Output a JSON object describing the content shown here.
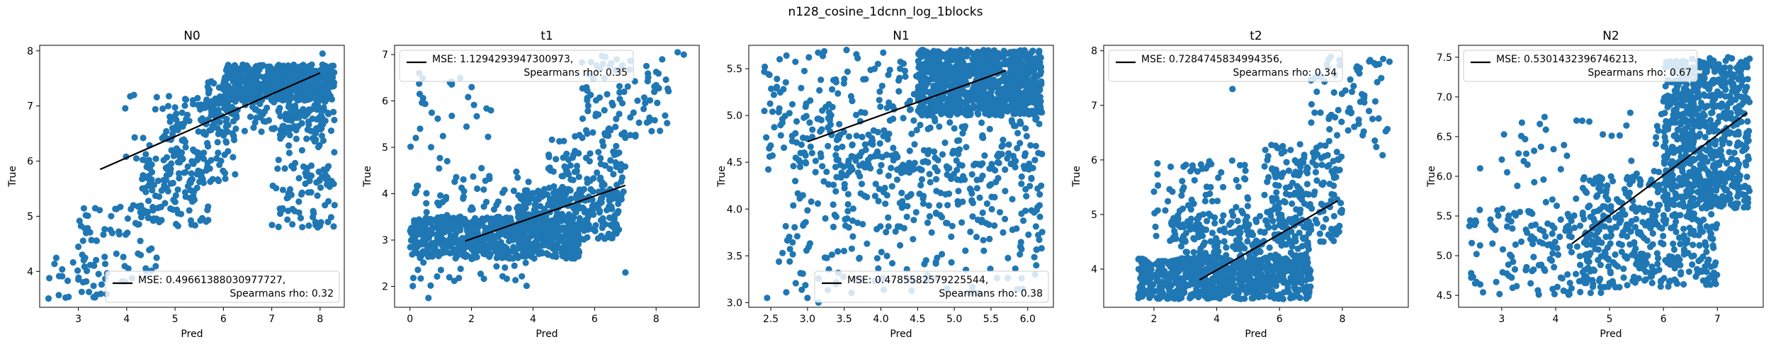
{
  "suptitle": "n128_cosine_1dcnn_log_1blocks",
  "colors": {
    "points": "#1f77b4",
    "fit_line": "#000000"
  },
  "chart_data": [
    {
      "type": "scatter",
      "title": "N0",
      "xlabel": "Pred",
      "ylabel": "True",
      "xlim": [
        2.2,
        8.5
      ],
      "ylim": [
        3.35,
        8.1
      ],
      "xticks": [
        3,
        4,
        5,
        6,
        7,
        8
      ],
      "yticks": [
        4,
        5,
        6,
        7,
        8
      ],
      "legend": {
        "loc": "lower right",
        "mse": "MSE: 0.49661388030977727,",
        "rho": "Spearmans rho: 0.32"
      },
      "fit_line": {
        "x": [
          3.45,
          8.0
        ],
        "y": [
          5.85,
          7.6
        ]
      },
      "clusters": [
        {
          "n": 500,
          "x": [
            6.0,
            8.3
          ],
          "y": [
            7.1,
            7.75
          ]
        },
        {
          "n": 180,
          "x": [
            5.6,
            8.2
          ],
          "y": [
            6.5,
            7.5
          ]
        },
        {
          "n": 130,
          "x": [
            7.0,
            8.3
          ],
          "y": [
            4.8,
            7.2
          ]
        },
        {
          "n": 120,
          "x": [
            4.8,
            6.3
          ],
          "y": [
            5.6,
            7.2
          ]
        },
        {
          "n": 110,
          "x": [
            4.3,
            5.7
          ],
          "y": [
            4.8,
            6.2
          ]
        },
        {
          "n": 70,
          "x": [
            3.0,
            4.7
          ],
          "y": [
            3.8,
            5.2
          ]
        },
        {
          "n": 30,
          "x": [
            2.3,
            3.6
          ],
          "y": [
            3.5,
            4.3
          ]
        },
        {
          "n": 25,
          "x": [
            3.8,
            6.0
          ],
          "y": [
            6.0,
            7.2
          ]
        }
      ],
      "points": [
        [
          4.15,
          7.2
        ],
        [
          6.4,
          7.75
        ],
        [
          8.05,
          7.95
        ],
        [
          4.95,
          6.5
        ],
        [
          7.95,
          4.8
        ],
        [
          8.1,
          5.2
        ],
        [
          6.0,
          7.3
        ],
        [
          4.2,
          6.05
        ]
      ]
    },
    {
      "type": "scatter",
      "title": "t1",
      "xlabel": "Pred",
      "ylabel": "True",
      "xlim": [
        -0.5,
        9.4
      ],
      "ylim": [
        1.55,
        7.2
      ],
      "xticks": [
        0,
        2,
        4,
        6,
        8
      ],
      "yticks": [
        2,
        3,
        4,
        5,
        6,
        7
      ],
      "legend": {
        "loc": "upper left",
        "mse": "MSE: 1.1294293947300973,",
        "rho": "Spearmans rho: 0.35"
      },
      "fit_line": {
        "x": [
          1.8,
          7.0
        ],
        "y": [
          2.98,
          4.18
        ]
      },
      "clusters": [
        {
          "n": 600,
          "x": [
            0.0,
            5.5
          ],
          "y": [
            2.6,
            3.5
          ]
        },
        {
          "n": 280,
          "x": [
            3.5,
            6.8
          ],
          "y": [
            3.0,
            4.1
          ]
        },
        {
          "n": 110,
          "x": [
            4.5,
            7.0
          ],
          "y": [
            3.8,
            5.3
          ]
        },
        {
          "n": 90,
          "x": [
            5.5,
            8.5
          ],
          "y": [
            5.2,
            7.0
          ]
        },
        {
          "n": 110,
          "x": [
            0.0,
            4.0
          ],
          "y": [
            2.0,
            4.5
          ]
        },
        {
          "n": 30,
          "x": [
            0.0,
            3.0
          ],
          "y": [
            4.5,
            6.5
          ]
        }
      ],
      "points": [
        [
          8.9,
          7.0
        ],
        [
          8.7,
          7.05
        ],
        [
          0.6,
          1.75
        ],
        [
          7.0,
          2.3
        ],
        [
          0.3,
          6.6
        ],
        [
          1.3,
          6.4
        ]
      ]
    },
    {
      "type": "scatter",
      "title": "N1",
      "xlabel": "Pred",
      "ylabel": "True",
      "xlim": [
        2.2,
        6.35
      ],
      "ylim": [
        2.95,
        5.75
      ],
      "xticks": [
        2.5,
        3.0,
        3.5,
        4.0,
        4.5,
        5.0,
        5.5,
        6.0
      ],
      "yticks": [
        3.0,
        3.5,
        4.0,
        4.5,
        5.0,
        5.5
      ],
      "legend": {
        "loc": "lower right",
        "mse": "MSE: 0.4785582579225544,",
        "rho": "Spearmans rho: 0.38"
      },
      "fit_line": {
        "x": [
          3.0,
          5.7
        ],
        "y": [
          4.72,
          5.48
        ]
      },
      "clusters": [
        {
          "n": 900,
          "x": [
            4.5,
            6.2
          ],
          "y": [
            5.0,
            5.7
          ]
        },
        {
          "n": 350,
          "x": [
            2.4,
            6.2
          ],
          "y": [
            4.4,
            5.7
          ]
        },
        {
          "n": 220,
          "x": [
            2.8,
            6.2
          ],
          "y": [
            3.8,
            4.6
          ]
        },
        {
          "n": 120,
          "x": [
            2.6,
            6.2
          ],
          "y": [
            3.1,
            3.9
          ]
        }
      ],
      "points": [
        [
          3.0,
          3.05
        ],
        [
          3.15,
          3.0
        ],
        [
          5.9,
          3.6
        ],
        [
          6.1,
          3.3
        ],
        [
          2.45,
          3.05
        ]
      ]
    },
    {
      "type": "scatter",
      "title": "t2",
      "xlabel": "Pred",
      "ylabel": "True",
      "xlim": [
        0.4,
        10.1
      ],
      "ylim": [
        3.3,
        8.1
      ],
      "xticks": [
        2,
        4,
        6,
        8
      ],
      "yticks": [
        4,
        5,
        6,
        7,
        8
      ],
      "legend": {
        "loc": "upper left",
        "mse": "MSE: 0.7284745834994356,",
        "rho": "Spearmans rho: 0.34"
      },
      "fit_line": {
        "x": [
          3.45,
          7.85
        ],
        "y": [
          3.8,
          5.25
        ]
      },
      "clusters": [
        {
          "n": 600,
          "x": [
            1.5,
            7.0
          ],
          "y": [
            3.45,
            4.2
          ]
        },
        {
          "n": 300,
          "x": [
            2.5,
            7.0
          ],
          "y": [
            3.6,
            5.0
          ]
        },
        {
          "n": 180,
          "x": [
            5.5,
            8.0
          ],
          "y": [
            4.5,
            6.3
          ]
        },
        {
          "n": 80,
          "x": [
            7.0,
            9.5
          ],
          "y": [
            6.0,
            7.9
          ]
        },
        {
          "n": 90,
          "x": [
            2.0,
            5.0
          ],
          "y": [
            4.5,
            6.0
          ]
        }
      ],
      "points": [
        [
          4.5,
          7.3
        ],
        [
          9.3,
          7.85
        ],
        [
          9.5,
          7.8
        ]
      ]
    },
    {
      "type": "scatter",
      "title": "N2",
      "xlabel": "Pred",
      "ylabel": "True",
      "xlim": [
        2.2,
        7.85
      ],
      "ylim": [
        4.35,
        7.65
      ],
      "xticks": [
        3,
        4,
        5,
        6,
        7
      ],
      "yticks": [
        4.5,
        5.0,
        5.5,
        6.0,
        6.5,
        7.0,
        7.5
      ],
      "legend": {
        "loc": "upper left",
        "mse": "MSE: 0.5301432396746213,",
        "rho": "Spearmans rho: 0.67"
      },
      "fit_line": {
        "x": [
          4.3,
          7.55
        ],
        "y": [
          5.15,
          6.8
        ]
      },
      "clusters": [
        {
          "n": 700,
          "x": [
            6.0,
            7.6
          ],
          "y": [
            5.6,
            7.5
          ]
        },
        {
          "n": 400,
          "x": [
            4.5,
            7.0
          ],
          "y": [
            4.6,
            6.0
          ]
        },
        {
          "n": 150,
          "x": [
            2.4,
            5.0
          ],
          "y": [
            4.5,
            5.6
          ]
        },
        {
          "n": 80,
          "x": [
            3.0,
            6.5
          ],
          "y": [
            5.3,
            6.8
          ]
        }
      ],
      "points": [
        [
          2.6,
          6.1
        ],
        [
          3.1,
          6.05
        ],
        [
          7.2,
          7.5
        ]
      ]
    }
  ]
}
